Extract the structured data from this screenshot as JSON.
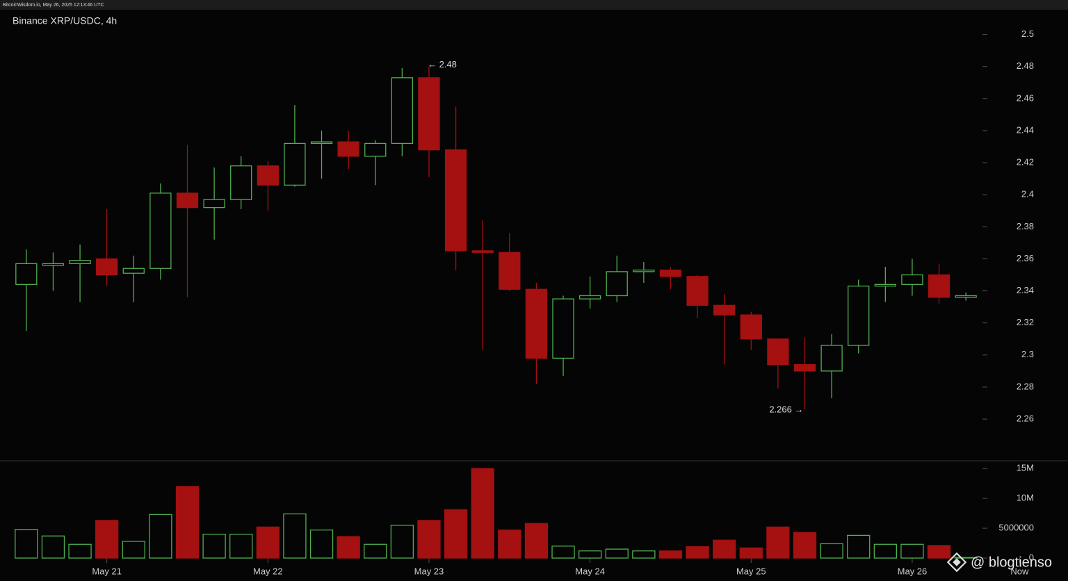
{
  "header": "BitcoinWisdom.io, May 26, 2025 12:13:46 UTC",
  "watermark": "@ blogtienso",
  "chart_data": [
    {
      "type": "candlestick",
      "title": "Binance XRP/USDC, 4h",
      "categories": [
        null,
        null,
        null,
        null,
        null,
        null,
        null,
        null,
        null,
        null,
        null,
        null,
        null,
        null,
        null,
        null,
        null,
        null,
        null,
        null,
        null,
        null,
        null,
        null,
        null,
        null,
        null,
        null,
        null,
        null,
        null,
        null,
        null,
        null,
        null,
        null
      ],
      "open": [
        2.344,
        2.356,
        2.357,
        2.36,
        2.351,
        2.354,
        2.401,
        2.392,
        2.397,
        2.418,
        2.406,
        2.432,
        2.433,
        2.424,
        2.432,
        2.473,
        2.428,
        2.365,
        2.364,
        2.341,
        2.298,
        2.335,
        2.337,
        2.352,
        2.353,
        2.349,
        2.331,
        2.325,
        2.31,
        2.294,
        2.29,
        2.306,
        2.343,
        2.344,
        2.35,
        2.336
      ],
      "high": [
        2.366,
        2.364,
        2.369,
        2.391,
        2.362,
        2.407,
        2.431,
        2.417,
        2.424,
        2.421,
        2.456,
        2.44,
        2.44,
        2.434,
        2.479,
        2.48,
        2.455,
        2.384,
        2.376,
        2.345,
        2.337,
        2.349,
        2.362,
        2.358,
        2.355,
        2.35,
        2.338,
        2.327,
        2.31,
        2.311,
        2.313,
        2.347,
        2.355,
        2.36,
        2.357,
        2.339
      ],
      "low": [
        2.315,
        2.34,
        2.333,
        2.343,
        2.333,
        2.347,
        2.336,
        2.372,
        2.391,
        2.39,
        2.405,
        2.41,
        2.416,
        2.406,
        2.424,
        2.411,
        2.353,
        2.303,
        2.34,
        2.282,
        2.287,
        2.329,
        2.333,
        2.345,
        2.341,
        2.323,
        2.294,
        2.303,
        2.279,
        2.266,
        2.273,
        2.301,
        2.333,
        2.337,
        2.332,
        2.334
      ],
      "close": [
        2.357,
        2.357,
        2.359,
        2.35,
        2.354,
        2.401,
        2.392,
        2.397,
        2.418,
        2.406,
        2.432,
        2.433,
        2.424,
        2.432,
        2.473,
        2.428,
        2.365,
        2.364,
        2.341,
        2.298,
        2.335,
        2.337,
        2.352,
        2.353,
        2.349,
        2.331,
        2.325,
        2.31,
        2.294,
        2.29,
        2.306,
        2.343,
        2.344,
        2.35,
        2.336,
        2.337
      ],
      "up_color": "#4fb04f",
      "down_color": "#a51010",
      "ylim": [
        2.234,
        2.515
      ],
      "yticks": [
        2.26,
        2.28,
        2.3,
        2.32,
        2.34,
        2.36,
        2.38,
        2.4,
        2.42,
        2.44,
        2.46,
        2.48,
        2.5
      ],
      "annotations": [
        "← 2.48",
        "2.266 →"
      ]
    },
    {
      "type": "volume",
      "values": [
        4800000,
        3700000,
        2300000,
        6300000,
        2800000,
        7300000,
        12000000,
        4000000,
        4000000,
        5200000,
        7400000,
        4700000,
        3600000,
        2300000,
        5500000,
        6300000,
        8100000,
        15000000,
        4700000,
        5800000,
        2000000,
        1200000,
        1500000,
        1200000,
        1200000,
        1900000,
        3000000,
        1700000,
        5200000,
        4300000,
        2400000,
        3800000,
        2300000,
        2300000,
        2100000,
        100000
      ],
      "ylim": [
        0,
        16300000
      ],
      "yticks": [
        0,
        5000000,
        {
          "value": 10000000,
          "label": "10M"
        },
        {
          "value": 15000000,
          "label": "15M"
        }
      ],
      "xlim": [
        -0.98,
        35.54
      ],
      "xticks": [
        {
          "value": 3,
          "label": "May 21"
        },
        {
          "value": 9,
          "label": "May 22"
        },
        {
          "value": 15,
          "label": "May 23"
        },
        {
          "value": 21,
          "label": "May 24"
        },
        {
          "value": 27,
          "label": "May 25"
        },
        {
          "value": 33,
          "label": "May 26"
        },
        {
          "value": 37,
          "label": "Now"
        }
      ]
    }
  ]
}
